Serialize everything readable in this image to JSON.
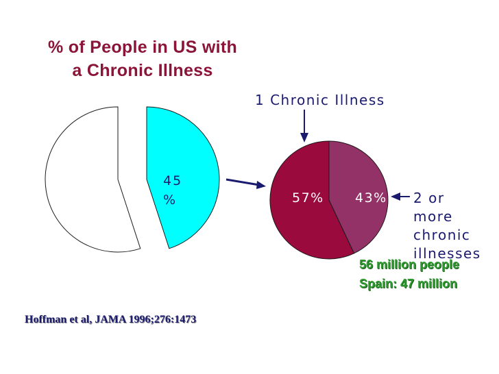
{
  "title_lines": [
    "% of People in US with",
    "a Chronic Illness"
  ],
  "colors": {
    "title": "#8b1538",
    "left_highlight": "#00ffff",
    "left_rest": "#ffffff",
    "right_one": "#9b0a3c",
    "right_multi": "#933266",
    "text_blue": "#1a1a6e",
    "green": "#2f9a2f"
  },
  "chart_data": [
    {
      "type": "pie",
      "slices": [
        {
          "label": "45\n%",
          "value": 45,
          "exploded": true
        },
        {
          "label": "",
          "value": 55,
          "exploded": true
        }
      ]
    },
    {
      "type": "pie",
      "slices": [
        {
          "label": "57%",
          "value": 57,
          "callout": "1 Chronic Illness"
        },
        {
          "label": "43%",
          "value": 43,
          "callout": "2 or more chronic illnesses"
        }
      ]
    }
  ],
  "labels": {
    "left_slice_line1": "45",
    "left_slice_line2": "%",
    "right_57": "57%",
    "right_43": "43%",
    "callout_one": "1 Chronic Illness",
    "callout_multi_lines": [
      "2 or",
      "more",
      "chronic",
      "illnesses"
    ],
    "green_line1": "56 million people",
    "green_line2": "Spain: 47 million",
    "reference": "Hoffman et al, JAMA 1996;276:1473"
  }
}
